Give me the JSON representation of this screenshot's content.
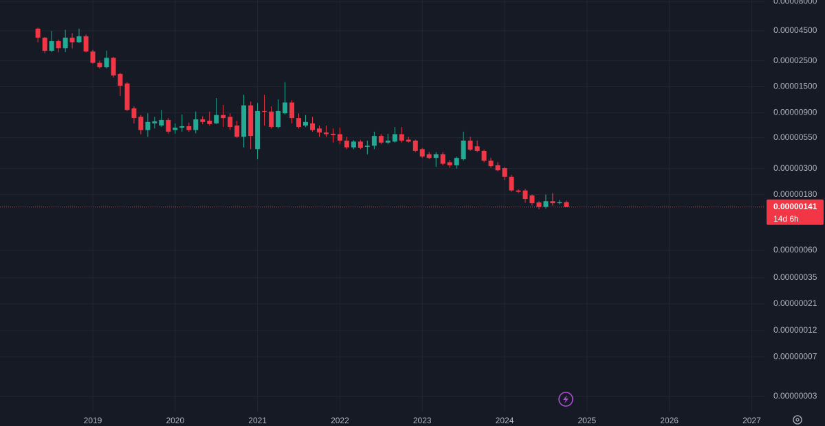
{
  "chart_data": {
    "type": "candlestick",
    "log_scale": true,
    "grid": true,
    "colors": {
      "up": "#22ab94",
      "down": "#f23645"
    },
    "x": [
      2018.333,
      2018.417,
      2018.5,
      2018.583,
      2018.667,
      2018.75,
      2018.833,
      2018.917,
      2019,
      2019.083,
      2019.167,
      2019.25,
      2019.333,
      2019.417,
      2019.5,
      2019.583,
      2019.667,
      2019.75,
      2019.833,
      2019.917,
      2020,
      2020.083,
      2020.167,
      2020.25,
      2020.333,
      2020.417,
      2020.5,
      2020.583,
      2020.667,
      2020.75,
      2020.833,
      2020.917,
      2021,
      2021.083,
      2021.167,
      2021.25,
      2021.333,
      2021.417,
      2021.5,
      2021.583,
      2021.667,
      2021.75,
      2021.833,
      2021.917,
      2022,
      2022.083,
      2022.167,
      2022.25,
      2022.333,
      2022.417,
      2022.5,
      2022.583,
      2022.667,
      2022.75,
      2022.833,
      2022.917,
      2023,
      2023.083,
      2023.167,
      2023.25,
      2023.333,
      2023.417,
      2023.5,
      2023.583,
      2023.667,
      2023.75,
      2023.833,
      2023.917,
      2024,
      2024.083,
      2024.167,
      2024.25,
      2024.333,
      2024.417,
      2024.5,
      2024.583,
      2024.667,
      2024.75
    ],
    "open": [
      4.7e-05,
      3.94e-05,
      3.04e-05,
      3.68e-05,
      3.2e-05,
      3.94e-05,
      3.6e-05,
      4.05e-05,
      3e-05,
      2.4e-05,
      2.2e-05,
      2.65e-05,
      1.93e-05,
      1.6e-05,
      9.8e-06,
      8.3e-06,
      6.4e-06,
      7.3e-06,
      7e-06,
      7.8e-06,
      6.4e-06,
      6.7e-06,
      6.9e-06,
      6.4e-06,
      7.9e-06,
      7.7e-06,
      7.3e-06,
      8.6e-06,
      8.3e-06,
      7e-06,
      5.6e-06,
      1.04e-05,
      4.4e-06,
      9.3e-06,
      9.2e-06,
      6.8e-06,
      8.9e-06,
      1.1e-05,
      8.1e-06,
      7e-06,
      7.3e-06,
      6.6e-06,
      6.1e-06,
      5.95e-06,
      5.9e-06,
      5.2e-06,
      4.55e-06,
      5.1e-06,
      4.6e-06,
      4.7e-06,
      5.7e-06,
      5e-06,
      5.1e-06,
      5.9e-06,
      5.3e-06,
      5.2e-06,
      4.4e-06,
      3.97e-06,
      3.7e-06,
      3.97e-06,
      3.4e-06,
      3.2e-06,
      3.6e-06,
      5.2e-06,
      4.65e-06,
      4.25e-06,
      3.5e-06,
      3.2e-06,
      3.03e-06,
      2.55e-06,
      1.95e-06,
      1.95e-06,
      1.77e-06,
      1.54e-06,
      1.41e-06,
      1.58e-06,
      1.52e-06,
      1.55e-06
    ],
    "high": [
      4.8e-05,
      3.99e-05,
      4.5e-05,
      3.8e-05,
      4.6e-05,
      4.3e-05,
      4.7e-05,
      4.2e-05,
      3.1e-05,
      2.5e-05,
      3.05e-05,
      2.7e-05,
      1.97e-05,
      1.64e-05,
      1.02e-05,
      8.6e-06,
      8.9e-06,
      8.3e-06,
      9.5e-06,
      8.1e-06,
      7.3e-06,
      8.7e-06,
      7.4e-06,
      9.2e-06,
      8.4e-06,
      9.2e-06,
      1.2e-05,
      1.05e-05,
      8.9e-06,
      7.7e-06,
      1.28e-05,
      1.12e-05,
      1.09e-05,
      1.28e-05,
      1.02e-05,
      1.17e-05,
      1.64e-05,
      1.15e-05,
      8.9e-06,
      8.6e-06,
      8.3e-06,
      7e-06,
      7e-06,
      6.6e-06,
      6.7e-06,
      5.6e-06,
      5.25e-06,
      5.25e-06,
      5.2e-06,
      6.2e-06,
      5.9e-06,
      5.95e-06,
      6.8e-06,
      6.8e-06,
      5.6e-06,
      5.3e-06,
      4.5e-06,
      4.15e-06,
      4.15e-06,
      4.15e-06,
      3.55e-06,
      3.8e-06,
      6.2e-06,
      5.6e-06,
      5.2e-06,
      4.35e-06,
      3.7e-06,
      3.4e-06,
      3.1e-06,
      2.65e-06,
      2e-06,
      2.02e-06,
      1.8e-06,
      1.58e-06,
      1.8e-06,
      1.85e-06,
      1.62e-06,
      1.6e-06
    ],
    "low": [
      3.6e-05,
      2.9e-05,
      2.96e-05,
      2.95e-05,
      2.96e-05,
      3.2e-05,
      3.55e-05,
      2.95e-05,
      2.35e-05,
      2.15e-05,
      2.15e-05,
      1.8e-05,
      1.25e-05,
      9.3e-06,
      7.3e-06,
      5.9e-06,
      5.6e-06,
      6.6e-06,
      6.8e-06,
      5.95e-06,
      5.95e-06,
      6.2e-06,
      6.2e-06,
      6e-06,
      7.2e-06,
      7e-06,
      7.2e-06,
      6.8e-06,
      6.4e-06,
      5.5e-06,
      4.54e-06,
      4.4e-06,
      3.6e-06,
      7e-06,
      6.6e-06,
      6.6e-06,
      8.7e-06,
      7.3e-06,
      6.6e-06,
      6.8e-06,
      6.2e-06,
      5.6e-06,
      5.6e-06,
      5e-06,
      4.85e-06,
      4.4e-06,
      4.4e-06,
      4.4e-06,
      3.97e-06,
      4.4e-06,
      4.85e-06,
      4.85e-06,
      5e-06,
      5e-06,
      5e-06,
      4.15e-06,
      3.7e-06,
      3.6e-06,
      3.1e-06,
      3.2e-06,
      3.05e-06,
      3e-06,
      3.5e-06,
      4.25e-06,
      4.15e-06,
      3.4e-06,
      3.05e-06,
      2.85e-06,
      2.4e-06,
      1.9e-06,
      1.85e-06,
      1.53e-06,
      1.45e-06,
      1.35e-06,
      1.37e-06,
      1.45e-06,
      1.48e-06,
      1.41e-06
    ],
    "close": [
      3.94e-05,
      3.04e-05,
      3.68e-05,
      3.2e-05,
      3.94e-05,
      3.6e-05,
      4.05e-05,
      3e-05,
      2.4e-05,
      2.2e-05,
      2.65e-05,
      1.87e-05,
      1.53e-05,
      9.5e-06,
      8.1e-06,
      6.4e-06,
      7.5e-06,
      7.6e-06,
      7.8e-06,
      6.2e-06,
      6.7e-06,
      6.9e-06,
      6.4e-06,
      7.9e-06,
      7.5e-06,
      7.2e-06,
      8.6e-06,
      8.1e-06,
      6.8e-06,
      5.6e-06,
      1.04e-05,
      5.7e-06,
      9.3e-06,
      9.2e-06,
      6.8e-06,
      9.3e-06,
      1.1e-05,
      8.1e-06,
      6.8e-06,
      7.5e-06,
      6.4e-06,
      6.1e-06,
      5.9e-06,
      5.8e-06,
      5.2e-06,
      4.55e-06,
      5.1e-06,
      4.5e-06,
      4.7e-06,
      5.7e-06,
      5e-06,
      5.2e-06,
      5.9e-06,
      5.2e-06,
      5.1e-06,
      4.25e-06,
      3.8e-06,
      3.7e-06,
      3.97e-06,
      3.3e-06,
      3.2e-06,
      3.7e-06,
      5.2e-06,
      4.35e-06,
      4.25e-06,
      3.5e-06,
      3.15e-06,
      2.9e-06,
      2.55e-06,
      1.95e-06,
      1.9e-06,
      1.65e-06,
      1.52e-06,
      1.41e-06,
      1.58e-06,
      1.52e-06,
      1.55e-06,
      1.41e-06
    ],
    "xlim": [
      2017.873,
      2027.155
    ],
    "xticks": [
      2019,
      2020,
      2021,
      2022,
      2023,
      2024,
      2025,
      2026,
      2027
    ],
    "ylim": [
      2.52e-08,
      8.26e-05
    ],
    "yticks": [
      {
        "value": 8e-05,
        "label": "0.00008000"
      },
      {
        "value": 4.5e-05,
        "label": "0.00004500"
      },
      {
        "value": 2.5e-05,
        "label": "0.00002500"
      },
      {
        "value": 1.5e-05,
        "label": "0.00001500"
      },
      {
        "value": 9e-06,
        "label": "0.00000900"
      },
      {
        "value": 5.5e-06,
        "label": "0.00000550"
      },
      {
        "value": 3e-06,
        "label": "0.00000300"
      },
      {
        "value": 1.8e-06,
        "label": "0.00000180"
      },
      {
        "value": 6e-07,
        "label": "0.00000060"
      },
      {
        "value": 3.5e-07,
        "label": "0.00000035"
      },
      {
        "value": 2.1e-07,
        "label": "0.00000021"
      },
      {
        "value": 1.24e-07,
        "label": "0.00000012"
      },
      {
        "value": 7.4e-08,
        "label": "0.00000007"
      },
      {
        "value": 3.4e-08,
        "label": "0.00000003"
      }
    ],
    "price_label": {
      "value": 1.41e-06,
      "label": "0.00000141"
    },
    "countdown": "14d 6h"
  }
}
